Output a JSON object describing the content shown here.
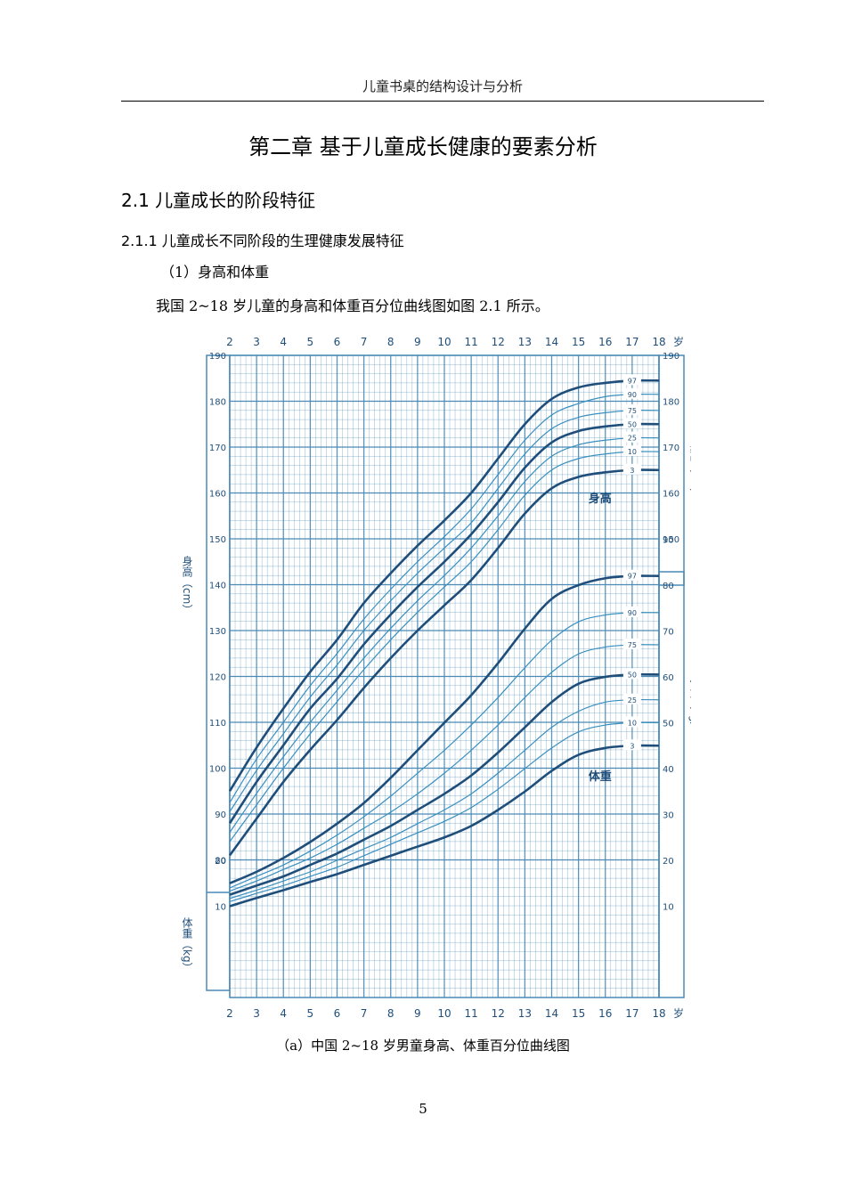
{
  "header": {
    "running_title": "儿童书桌的结构设计与分析"
  },
  "chapter_title": "第二章  基于儿童成长健康的要素分析",
  "section": {
    "number_title": "2.1  儿童成长的阶段特征"
  },
  "subsection": {
    "number_title": "2.1.1  儿童成长不同阶段的生理健康发展特征"
  },
  "item_heading": "（1）身高和体重",
  "paragraph": "我国 2~18 岁儿童的身高和体重百分位曲线图如图 2.1 所示。",
  "figure_caption": "（a）中国 2~18 岁男童身高、体重百分位曲线图",
  "page_number": "5",
  "colors": {
    "grid": "#4a8ab5",
    "curve_major": "#1f4e7a",
    "curve_minor": "#3a8fbf",
    "axis_text": "#1f4e7a"
  },
  "chart_data": {
    "type": "line",
    "title": "",
    "x_ticks": [
      "2",
      "3",
      "4",
      "5",
      "6",
      "7",
      "8",
      "9",
      "10",
      "11",
      "12",
      "13",
      "14",
      "15",
      "16",
      "17",
      "18"
    ],
    "x_unit": "岁",
    "height_axis": {
      "label": "身高（cm）",
      "ticks": [
        "80",
        "90",
        "100",
        "110",
        "120",
        "130",
        "140",
        "150",
        "160",
        "170",
        "180",
        "190"
      ],
      "right_ticks": [
        "150",
        "160",
        "170",
        "180",
        "190"
      ],
      "ylim": [
        75,
        190
      ]
    },
    "weight_axis": {
      "label": "体重（kg）",
      "left_ticks": [
        "10",
        "20"
      ],
      "right_ticks": [
        "10",
        "20",
        "30",
        "40",
        "50",
        "60",
        "70",
        "80",
        "90"
      ],
      "ylim": [
        0,
        93
      ]
    },
    "height_label": "身高",
    "weight_label": "体重",
    "height_series": [
      {
        "name": "97",
        "major": true,
        "x": [
          2,
          3,
          4,
          5,
          6,
          7,
          8,
          9,
          10,
          11,
          12,
          13,
          14,
          15,
          16,
          17,
          18
        ],
        "y": [
          95,
          104.5,
          113,
          121,
          128,
          136,
          142.5,
          148.5,
          154,
          160,
          167.5,
          175,
          180.5,
          183,
          184,
          184.5,
          184.5
        ]
      },
      {
        "name": "90",
        "major": false,
        "x": [
          2,
          3,
          4,
          5,
          6,
          7,
          8,
          9,
          10,
          11,
          12,
          13,
          14,
          15,
          16,
          17,
          18
        ],
        "y": [
          92.5,
          102,
          110,
          118,
          125,
          132.5,
          139,
          145,
          150.5,
          156.5,
          164,
          171.5,
          177,
          179.5,
          181,
          181.5,
          181.5
        ]
      },
      {
        "name": "75",
        "major": false,
        "x": [
          2,
          3,
          4,
          5,
          6,
          7,
          8,
          9,
          10,
          11,
          12,
          13,
          14,
          15,
          16,
          17,
          18
        ],
        "y": [
          90.5,
          99.5,
          107.5,
          115.5,
          122.5,
          130,
          136.5,
          142.5,
          148,
          153.5,
          161,
          168.5,
          174,
          176.5,
          177.5,
          178,
          178
        ]
      },
      {
        "name": "50",
        "major": true,
        "x": [
          2,
          3,
          4,
          5,
          6,
          7,
          8,
          9,
          10,
          11,
          12,
          13,
          14,
          15,
          16,
          17,
          18
        ],
        "y": [
          88,
          97,
          105,
          113,
          119.5,
          127,
          133.5,
          139.5,
          145,
          151,
          158,
          165.5,
          171,
          173.5,
          174.5,
          175,
          175
        ]
      },
      {
        "name": "25",
        "major": false,
        "x": [
          2,
          3,
          4,
          5,
          6,
          7,
          8,
          9,
          10,
          11,
          12,
          13,
          14,
          15,
          16,
          17,
          18
        ],
        "y": [
          86,
          94.5,
          102.5,
          110,
          117,
          124,
          130.5,
          136.5,
          142,
          148,
          155,
          162.5,
          168,
          170.5,
          171.5,
          172,
          172
        ]
      },
      {
        "name": "10",
        "major": false,
        "x": [
          2,
          3,
          4,
          5,
          6,
          7,
          8,
          9,
          10,
          11,
          12,
          13,
          14,
          15,
          16,
          17,
          18
        ],
        "y": [
          84,
          92,
          100,
          107.5,
          114.5,
          121.5,
          128,
          134,
          139.5,
          145,
          152,
          159.5,
          165,
          167.5,
          168.5,
          169,
          169
        ]
      },
      {
        "name": "3",
        "major": true,
        "x": [
          2,
          3,
          4,
          5,
          6,
          7,
          8,
          9,
          10,
          11,
          12,
          13,
          14,
          15,
          16,
          17,
          18
        ],
        "y": [
          81,
          89,
          97,
          104,
          110.5,
          117.5,
          124,
          130,
          135.5,
          141,
          148,
          155.5,
          161,
          163.5,
          164.5,
          165,
          165
        ]
      }
    ],
    "weight_series": [
      {
        "name": "97",
        "major": true,
        "x": [
          2,
          3,
          4,
          5,
          6,
          7,
          8,
          9,
          10,
          11,
          12,
          13,
          14,
          15,
          16,
          17,
          18
        ],
        "y": [
          15,
          17.5,
          20.5,
          24,
          28,
          32.5,
          38,
          44,
          50,
          56,
          63,
          70.5,
          77,
          80,
          81.5,
          82,
          82
        ]
      },
      {
        "name": "90",
        "major": false,
        "x": [
          2,
          3,
          4,
          5,
          6,
          7,
          8,
          9,
          10,
          11,
          12,
          13,
          14,
          15,
          16,
          17,
          18
        ],
        "y": [
          14,
          16.5,
          19,
          22,
          25.5,
          29.5,
          34,
          39,
          44,
          49.5,
          55.5,
          62,
          68,
          72,
          73.5,
          74,
          74
        ]
      },
      {
        "name": "75",
        "major": false,
        "x": [
          2,
          3,
          4,
          5,
          6,
          7,
          8,
          9,
          10,
          11,
          12,
          13,
          14,
          15,
          16,
          17,
          18
        ],
        "y": [
          13.3,
          15.5,
          18,
          20.5,
          23.5,
          27,
          30.5,
          34.5,
          39,
          44,
          49.5,
          55.5,
          61,
          65,
          66.5,
          67,
          67
        ]
      },
      {
        "name": "50",
        "major": true,
        "x": [
          2,
          3,
          4,
          5,
          6,
          7,
          8,
          9,
          10,
          11,
          12,
          13,
          14,
          15,
          16,
          17,
          18
        ],
        "y": [
          12.5,
          14.5,
          16.5,
          19,
          21.5,
          24.5,
          27.5,
          31,
          34.5,
          38.5,
          43.5,
          49,
          54.5,
          58.5,
          60,
          60.5,
          60.5
        ]
      },
      {
        "name": "25",
        "major": false,
        "x": [
          2,
          3,
          4,
          5,
          6,
          7,
          8,
          9,
          10,
          11,
          12,
          13,
          14,
          15,
          16,
          17,
          18
        ],
        "y": [
          11.7,
          13.5,
          15.5,
          17.5,
          20,
          22.5,
          25,
          28,
          31,
          34.5,
          39,
          44,
          49,
          52.5,
          54.5,
          55,
          55
        ]
      },
      {
        "name": "10",
        "major": false,
        "x": [
          2,
          3,
          4,
          5,
          6,
          7,
          8,
          9,
          10,
          11,
          12,
          13,
          14,
          15,
          16,
          17,
          18
        ],
        "y": [
          11,
          12.8,
          14.5,
          16.5,
          18.5,
          21,
          23.5,
          26,
          28.5,
          31.5,
          35.5,
          40,
          44.5,
          48,
          49.5,
          50,
          50
        ]
      },
      {
        "name": "3",
        "major": true,
        "x": [
          2,
          3,
          4,
          5,
          6,
          7,
          8,
          9,
          10,
          11,
          12,
          13,
          14,
          15,
          16,
          17,
          18
        ],
        "y": [
          10,
          11.8,
          13.5,
          15.3,
          17,
          19,
          21,
          23,
          25,
          27.5,
          31,
          35,
          39.5,
          43,
          44.5,
          45,
          45
        ]
      }
    ]
  }
}
